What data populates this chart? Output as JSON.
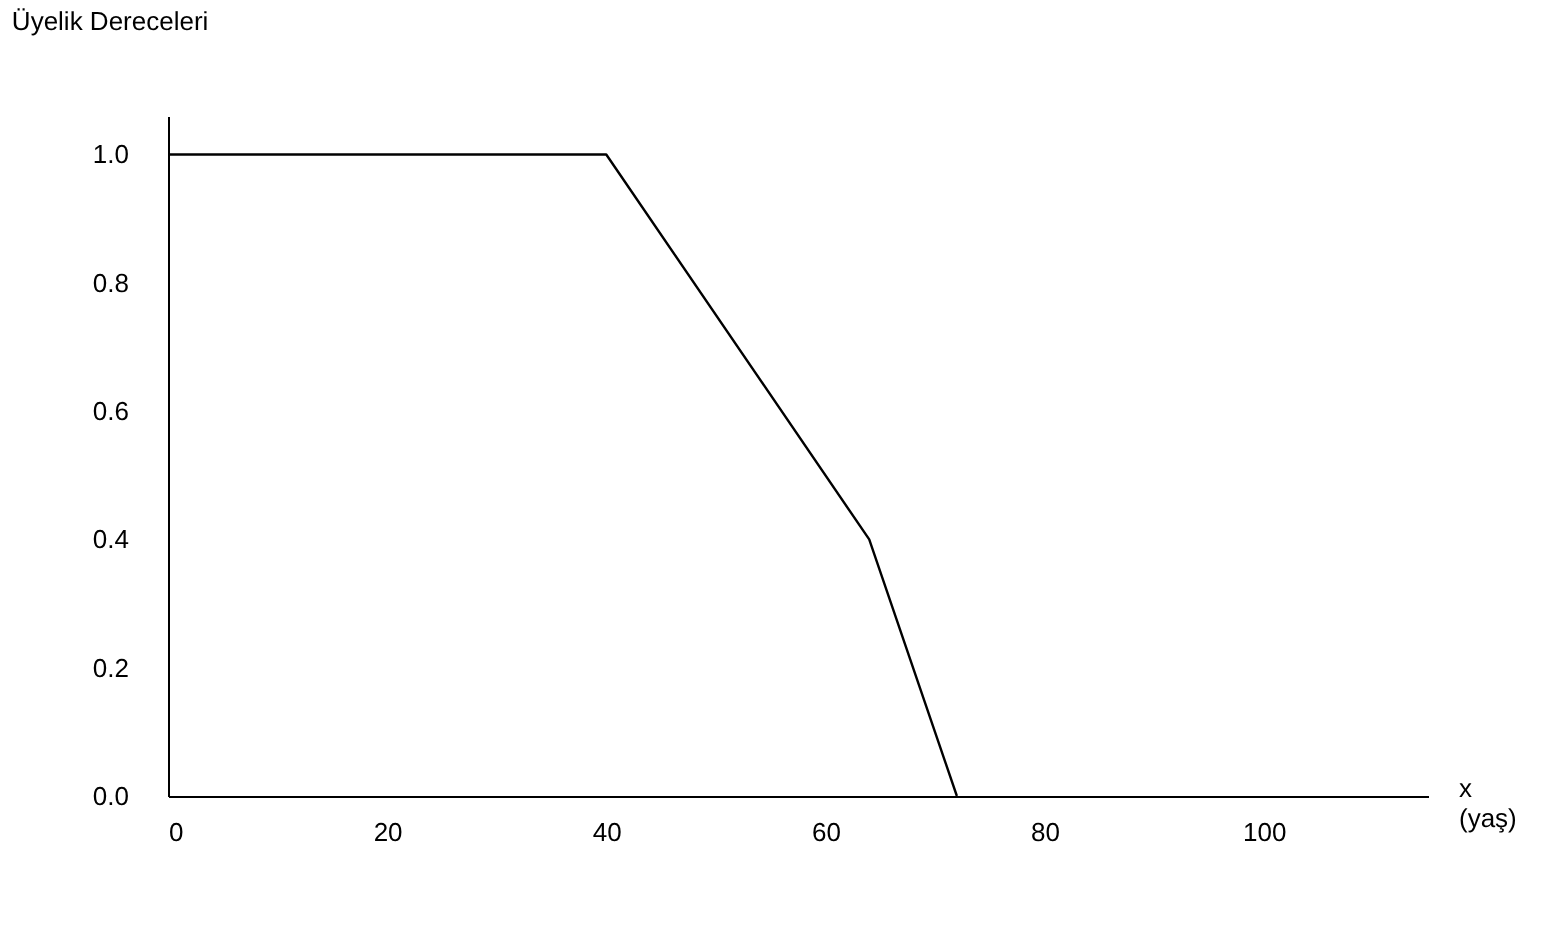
{
  "chart_data": {
    "type": "line",
    "title": "Üyelik Dereceleri",
    "xlabel": "x (yaş)",
    "x": [
      0,
      40,
      64,
      72
    ],
    "series": [
      {
        "color": "#000000",
        "values": [
          1.0,
          1.0,
          0.4,
          0.0
        ]
      }
    ],
    "xlim": [
      0,
      115
    ],
    "xticks": [
      0,
      20,
      40,
      60,
      80,
      100
    ],
    "ylim": [
      0,
      1.06
    ],
    "yticks": [
      {
        "value": 0,
        "label": "0.0"
      },
      {
        "value": 0.2,
        "label": "0.2"
      },
      {
        "value": 0.4,
        "label": "0.4"
      },
      {
        "value": 0.6,
        "label": "0.6"
      },
      {
        "value": 0.8,
        "label": "0.8"
      },
      {
        "value": 1.0,
        "label": "1.0"
      }
    ],
    "grid": false,
    "marker": "none",
    "line_style": "solid"
  }
}
